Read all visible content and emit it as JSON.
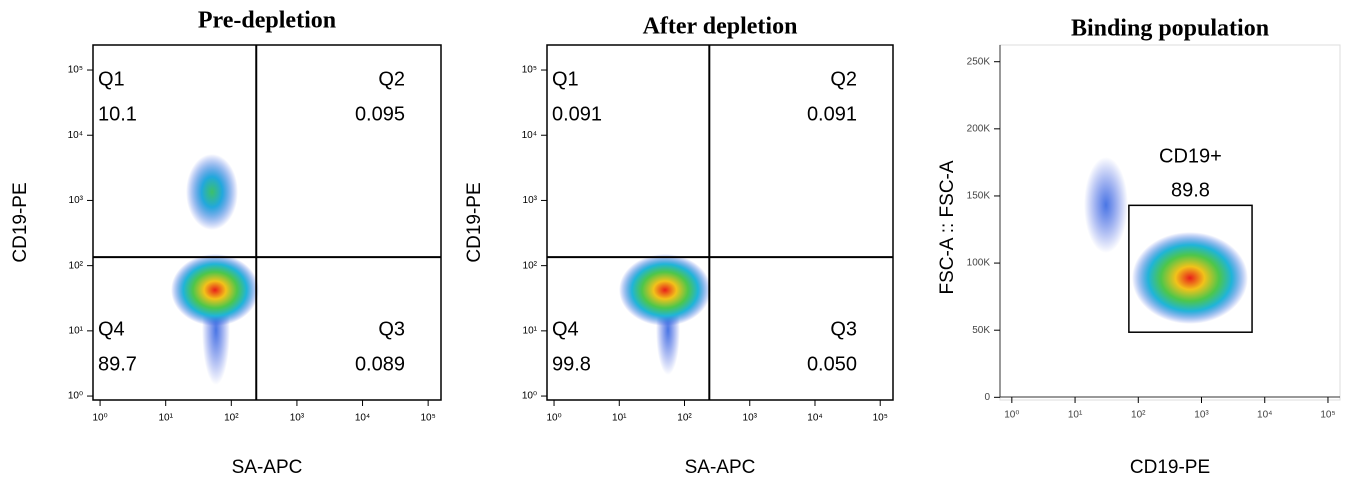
{
  "chart_data": [
    {
      "type": "quadrant",
      "title": "Pre-depletion",
      "xlabel": "SA-APC",
      "ylabel": "CD19-PE",
      "xscale": "log",
      "yscale": "log",
      "xlim": [
        0.78,
        157000
      ],
      "ylim": [
        0.87,
        242000
      ],
      "xticks": [
        {
          "value": 1,
          "label": "10⁰"
        },
        {
          "value": 10,
          "label": "10¹"
        },
        {
          "value": 100,
          "label": "10²"
        },
        {
          "value": 1000,
          "label": "10³"
        },
        {
          "value": 10000,
          "label": "10⁴"
        },
        {
          "value": 100000,
          "label": "10⁵"
        }
      ],
      "yticks": [
        {
          "value": 1,
          "label": "10⁰"
        },
        {
          "value": 10,
          "label": "10¹"
        },
        {
          "value": 100,
          "label": "10²"
        },
        {
          "value": 1000,
          "label": "10³"
        },
        {
          "value": 10000,
          "label": "10⁴"
        },
        {
          "value": 100000,
          "label": "10⁵"
        }
      ],
      "gate": {
        "x": 240,
        "y": 135
      },
      "quadrants": [
        {
          "name": "Q1",
          "value": "10.1"
        },
        {
          "name": "Q2",
          "value": "0.095"
        },
        {
          "name": "Q3",
          "value": "0.089"
        },
        {
          "name": "Q4",
          "value": "89.7"
        }
      ]
    },
    {
      "type": "quadrant",
      "title": "After depletion",
      "xlabel": "SA-APC",
      "ylabel": "CD19-PE",
      "xscale": "log",
      "yscale": "log",
      "xlim": [
        0.78,
        157000
      ],
      "ylim": [
        0.87,
        242000
      ],
      "xticks": [
        {
          "value": 1,
          "label": "10⁰"
        },
        {
          "value": 10,
          "label": "10¹"
        },
        {
          "value": 100,
          "label": "10²"
        },
        {
          "value": 1000,
          "label": "10³"
        },
        {
          "value": 10000,
          "label": "10⁴"
        },
        {
          "value": 100000,
          "label": "10⁵"
        }
      ],
      "yticks": [
        {
          "value": 1,
          "label": "10⁰"
        },
        {
          "value": 10,
          "label": "10¹"
        },
        {
          "value": 100,
          "label": "10²"
        },
        {
          "value": 1000,
          "label": "10³"
        },
        {
          "value": 10000,
          "label": "10⁴"
        },
        {
          "value": 100000,
          "label": "10⁵"
        }
      ],
      "gate": {
        "x": 240,
        "y": 135
      },
      "quadrants": [
        {
          "name": "Q1",
          "value": "0.091"
        },
        {
          "name": "Q2",
          "value": "0.091"
        },
        {
          "name": "Q3",
          "value": "0.050"
        },
        {
          "name": "Q4",
          "value": "99.8"
        }
      ]
    },
    {
      "type": "gate",
      "title": "Binding population",
      "xlabel": "CD19-PE",
      "ylabel": "FSC-A :: FSC-A",
      "xscale": "log",
      "yscale": "linear",
      "xlim": [
        0.65,
        155000
      ],
      "ylim": [
        -2000,
        255000
      ],
      "xticks": [
        {
          "value": 1,
          "label": "10⁰"
        },
        {
          "value": 10,
          "label": "10¹"
        },
        {
          "value": 100,
          "label": "10²"
        },
        {
          "value": 1000,
          "label": "10³"
        },
        {
          "value": 10000,
          "label": "10⁴"
        },
        {
          "value": 100000,
          "label": "10⁵"
        }
      ],
      "yticks": [
        0,
        {
          "value": 50000,
          "label": "50K"
        },
        {
          "value": 100000,
          "label": "100K"
        },
        {
          "value": 150000,
          "label": "150K"
        },
        {
          "value": 200000,
          "label": "200K"
        },
        {
          "value": 250000,
          "label": "250K"
        }
      ],
      "gate": {
        "name": "CD19+",
        "value": "89.8",
        "x": [
          71,
          6300
        ],
        "y": [
          48500,
          143000
        ]
      }
    }
  ]
}
